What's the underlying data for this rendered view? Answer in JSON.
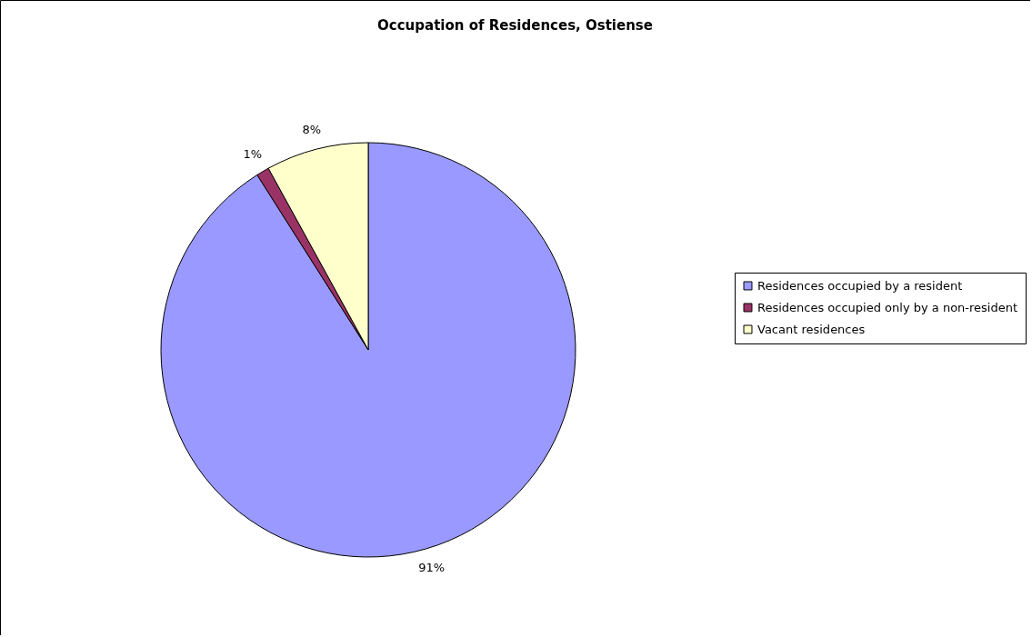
{
  "chart_data": {
    "type": "pie",
    "title": "Occupation of Residences, Ostiense",
    "categories": [
      "Residences occupied by a resident",
      "Residences occupied only by a non-resident",
      "Vacant residences"
    ],
    "values": [
      91,
      1,
      8
    ],
    "colors": [
      "#9999ff",
      "#993366",
      "#ffffcc"
    ],
    "value_labels": [
      "91%",
      "1%",
      "8%"
    ],
    "legend": "right"
  }
}
